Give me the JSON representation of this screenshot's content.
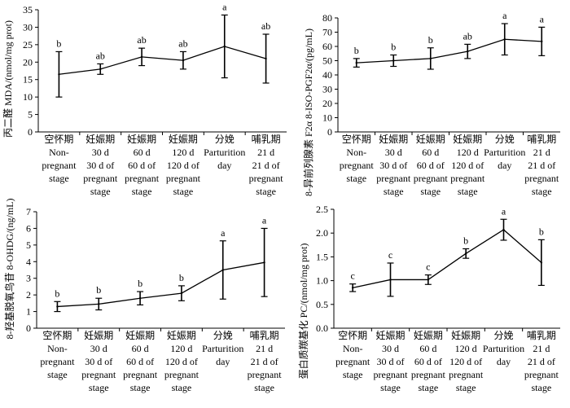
{
  "chart_data": [
    {
      "type": "line",
      "ylabel": "丙二醛 MDA/(nmol/mg prot)",
      "ylim": [
        0,
        35
      ],
      "yticks": [
        0,
        5,
        10,
        15,
        20,
        25,
        30,
        35
      ],
      "categories": [
        [
          "空怀期",
          "Non-",
          "pregnant",
          "stage"
        ],
        [
          "妊娠期",
          "30 d",
          "30 d of",
          "pregnant",
          "stage"
        ],
        [
          "妊娠期",
          "60 d",
          "60 d of",
          "pregnant",
          "stage"
        ],
        [
          "妊娠期",
          "120 d",
          "120 d of",
          "pregnant",
          "stage"
        ],
        [
          "分娩",
          "Parturition",
          "day"
        ],
        [
          "哺乳期",
          "21 d",
          "21 d of",
          "pregnant",
          "stage"
        ]
      ],
      "values": [
        16.5,
        18.0,
        21.5,
        20.5,
        24.5,
        21.0
      ],
      "error": [
        6.5,
        1.5,
        2.5,
        2.5,
        9.0,
        7.0
      ],
      "labels": [
        "b",
        "ab",
        "ab",
        "ab",
        "a",
        "ab"
      ]
    },
    {
      "type": "line",
      "ylabel": "8-异前列腺素 F2α 8-ISO-PGF2α/(pg/mL)",
      "ylim": [
        0,
        80
      ],
      "yticks": [
        0,
        10,
        20,
        30,
        40,
        50,
        60,
        70,
        80
      ],
      "categories": [
        [
          "空怀期",
          "Non-",
          "pregnant",
          "stage"
        ],
        [
          "妊娠期",
          "30 d",
          "30 d of",
          "pregnant",
          "stage"
        ],
        [
          "妊娠期",
          "60 d",
          "60 d of",
          "pregnant",
          "stage"
        ],
        [
          "妊娠期",
          "120 d",
          "120 d of",
          "pregnant",
          "stage"
        ],
        [
          "分娩",
          "Parturition",
          "day"
        ],
        [
          "哺乳期",
          "21 d",
          "21 d of",
          "pregnant",
          "stage"
        ]
      ],
      "values": [
        48.5,
        50.0,
        51.5,
        56.5,
        65.0,
        63.5
      ],
      "error": [
        3.0,
        4.0,
        7.5,
        5.0,
        11.0,
        10.0
      ],
      "labels": [
        "b",
        "b",
        "b",
        "ab",
        "a",
        "a"
      ]
    },
    {
      "type": "line",
      "ylabel": "8-羟基脱氧鸟苷 8-OHDG/(ng/mL)",
      "ylim": [
        0,
        7
      ],
      "yticks": [
        0,
        1,
        2,
        3,
        4,
        5,
        6,
        7
      ],
      "categories": [
        [
          "空怀期",
          "Non-",
          "pregnant",
          "stage"
        ],
        [
          "妊娠期",
          "30 d",
          "30 d of",
          "pregnant",
          "stage"
        ],
        [
          "妊娠期",
          "60 d",
          "60 d of",
          "pregnant",
          "stage"
        ],
        [
          "妊娠期",
          "120 d",
          "120 d of",
          "pregnant",
          "stage"
        ],
        [
          "分娩",
          "Parturition",
          "day"
        ],
        [
          "哺乳期",
          "21 d",
          "21 d of",
          "pregnant",
          "stage"
        ]
      ],
      "values": [
        1.3,
        1.45,
        1.8,
        2.1,
        3.5,
        3.95
      ],
      "error": [
        0.3,
        0.35,
        0.4,
        0.45,
        1.75,
        2.05
      ],
      "labels": [
        "b",
        "b",
        "b",
        "b",
        "a",
        "a"
      ]
    },
    {
      "type": "line",
      "ylabel": "蛋白质羰基化 PC/(nmol/mg prot)",
      "ylim": [
        0,
        2.5
      ],
      "yticks": [
        0,
        0.5,
        1.0,
        1.5,
        2.0,
        2.5
      ],
      "categories": [
        [
          "空怀期",
          "Non-",
          "pregnant",
          "stage"
        ],
        [
          "妊娠期",
          "30 d",
          "30 d of",
          "pregnant",
          "stage"
        ],
        [
          "妊娠期",
          "60 d",
          "60 d of",
          "pregnant",
          "stage"
        ],
        [
          "妊娠期",
          "120 d",
          "120 d of",
          "pregnant",
          "stage"
        ],
        [
          "分娩",
          "Parturition",
          "day"
        ],
        [
          "哺乳期",
          "21 d",
          "21 d of",
          "pregnant",
          "stage"
        ]
      ],
      "values": [
        0.85,
        1.02,
        1.02,
        1.57,
        2.07,
        1.38
      ],
      "error": [
        0.08,
        0.35,
        0.1,
        0.1,
        0.22,
        0.48
      ],
      "labels": [
        "c",
        "c",
        "c",
        "b",
        "a",
        "b"
      ]
    }
  ]
}
